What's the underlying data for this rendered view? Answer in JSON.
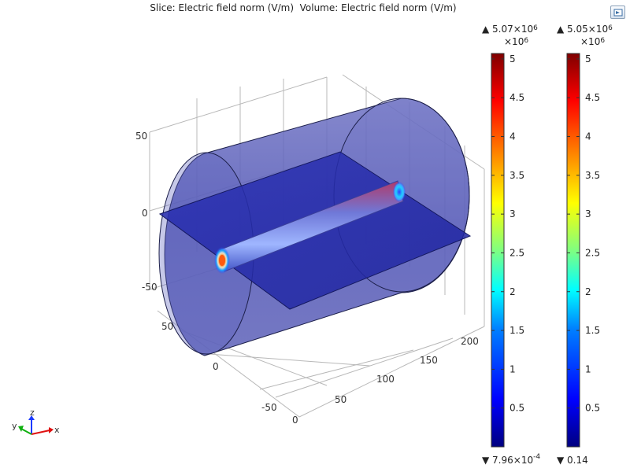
{
  "title": "Slice: Electric field norm (V/m)  Volume: Electric field norm (V/m)",
  "axes": {
    "vertical_ticks": [
      "50",
      "0",
      "-50"
    ],
    "left_depth_ticks": [
      "50",
      "0",
      "-50"
    ],
    "length_ticks": [
      "0",
      "50",
      "100",
      "150",
      "200"
    ]
  },
  "triad": {
    "x": "x",
    "y": "y",
    "z": "z"
  },
  "colorbars": [
    {
      "name": "Slice",
      "max_prefix": "▲ 5.07×10",
      "max_exp": "6",
      "multiplier": "×10",
      "multiplier_exp": "6",
      "min_prefix": "▼ 7.96×10",
      "min_exp": "-4",
      "ticks": [
        "5",
        "4.5",
        "4",
        "3.5",
        "3",
        "2.5",
        "2",
        "1.5",
        "1",
        "0.5"
      ]
    },
    {
      "name": "Volume",
      "max_prefix": "▲ 5.05×10",
      "max_exp": "6",
      "multiplier": "×10",
      "multiplier_exp": "6",
      "min_prefix": "▼ 0.14",
      "min_exp": "",
      "ticks": [
        "5",
        "4.5",
        "4",
        "3.5",
        "3",
        "2.5",
        "2",
        "1.5",
        "1",
        "0.5"
      ]
    }
  ],
  "colors": {
    "background": "#ffffff",
    "cylinder": "#5a5fb8",
    "slice_plane": "#2228a8",
    "colormap": [
      "#00007f",
      "#0000ff",
      "#0080ff",
      "#00ffff",
      "#80ff80",
      "#ffff00",
      "#ff8000",
      "#ff0000",
      "#7f0000"
    ]
  }
}
